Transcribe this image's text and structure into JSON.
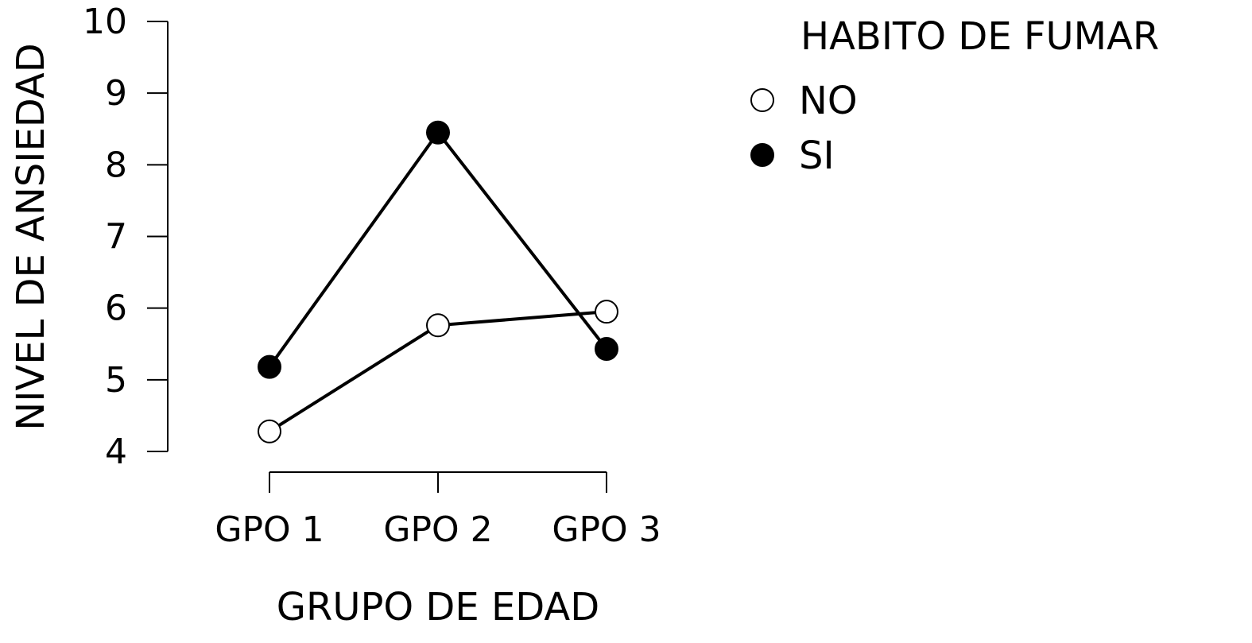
{
  "chart_data": {
    "type": "line",
    "title": "",
    "xlabel": "GRUPO DE EDAD",
    "ylabel": "NIVEL DE ANSIEDAD",
    "categories": [
      "GPO 1",
      "GPO 2",
      "GPO 3"
    ],
    "yticks": [
      4,
      5,
      6,
      7,
      8,
      9,
      10
    ],
    "ylim": [
      4,
      10
    ],
    "grid": false,
    "legend": {
      "title": "HABITO DE FUMAR",
      "placement": "top-right"
    },
    "series": [
      {
        "name": "NO",
        "marker": "open-circle",
        "values": [
          4.28,
          5.76,
          5.95
        ]
      },
      {
        "name": "SI",
        "marker": "filled-circle",
        "values": [
          5.18,
          8.45,
          5.43
        ]
      }
    ],
    "colors": {
      "line": "#000000",
      "marker_fill_open": "#ffffff",
      "marker_fill_filled": "#000000"
    }
  }
}
